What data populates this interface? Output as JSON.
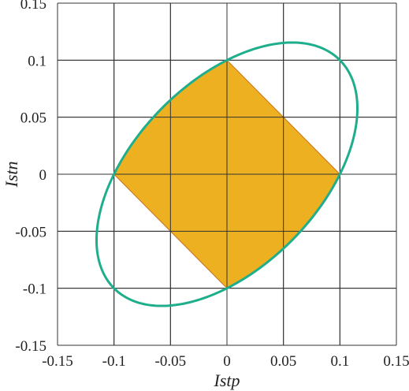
{
  "chart_data": {
    "type": "area",
    "title": "",
    "xlabel": "Istp",
    "ylabel": "Istn",
    "xlim": [
      -0.15,
      0.15
    ],
    "ylim": [
      -0.15,
      0.15
    ],
    "xticks": [
      "-0.15",
      "-0.1",
      "-0.05",
      "0",
      "0.05",
      "0.1",
      "0.15"
    ],
    "yticks": [
      "0.15",
      "0.1",
      "0.05",
      "0",
      "-0.05",
      "-0.1",
      "-0.15"
    ],
    "xtick_values": [
      -0.15,
      -0.1,
      -0.05,
      0,
      0.05,
      0.1,
      0.15
    ],
    "ytick_values": [
      0.15,
      0.1,
      0.05,
      0,
      -0.05,
      -0.1,
      -0.15
    ],
    "grid": true,
    "region": {
      "fill": "#EDB021",
      "edge": "#C9701A",
      "vertices": [
        [
          0,
          0.1
        ],
        [
          0.1,
          0
        ],
        [
          0,
          -0.1
        ],
        [
          -0.1,
          0
        ]
      ],
      "bulge_edges": [
        [
          [
            0,
            0.1
          ],
          [
            -0.1,
            0
          ]
        ],
        [
          [
            0.1,
            0
          ],
          [
            0,
            -0.1
          ]
        ]
      ]
    },
    "ellipse": {
      "color": "#1FAE8C",
      "center": [
        0,
        0
      ],
      "equation": "x^2 - x*y + y^2 = 0.01"
    }
  }
}
